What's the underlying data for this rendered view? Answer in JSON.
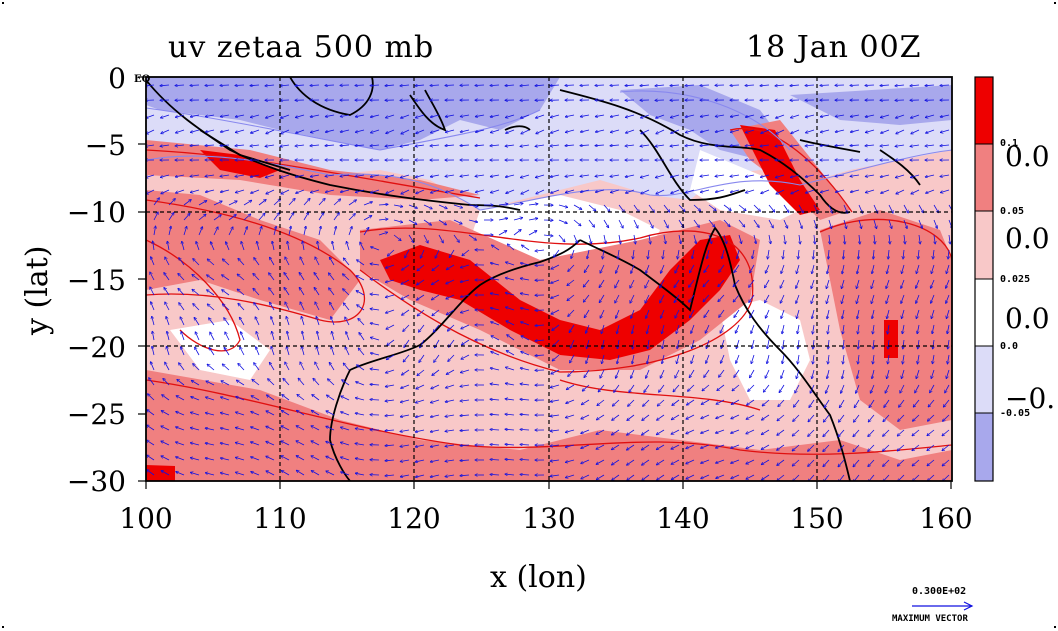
{
  "title_left": "uv zetaa 500 mb",
  "title_right": "18 Jan 00Z",
  "axis": {
    "xlabel": "x (lon)",
    "ylabel": "y (lat)",
    "xticks": [
      "100",
      "110",
      "120",
      "130",
      "140",
      "150",
      "160"
    ],
    "yticks": [
      "0",
      "−5",
      "−10",
      "−15",
      "−20",
      "−25",
      "−30"
    ],
    "eq_label": "EQ"
  },
  "colorbar": {
    "labels": [
      "0.1",
      "0.05",
      "0.025",
      "0.0",
      "-0.05"
    ],
    "truncated_labels": [
      "0.0",
      "0.0",
      "0.0",
      "−0."
    ]
  },
  "colors": {
    "strong_red": "#ee0000",
    "red": "#f08080",
    "light_red": "#f8c8c8",
    "white": "#ffffff",
    "light_blue": "#dcdcf8",
    "blue": "#a8a8ec",
    "contour_red": "#e01010",
    "contour_blue": "#8888ee",
    "vector_blue": "#1010e0",
    "coast": "#000000"
  },
  "vector_legend": {
    "value": "0.300E+02",
    "caption": "MAXIMUM VECTOR"
  }
}
